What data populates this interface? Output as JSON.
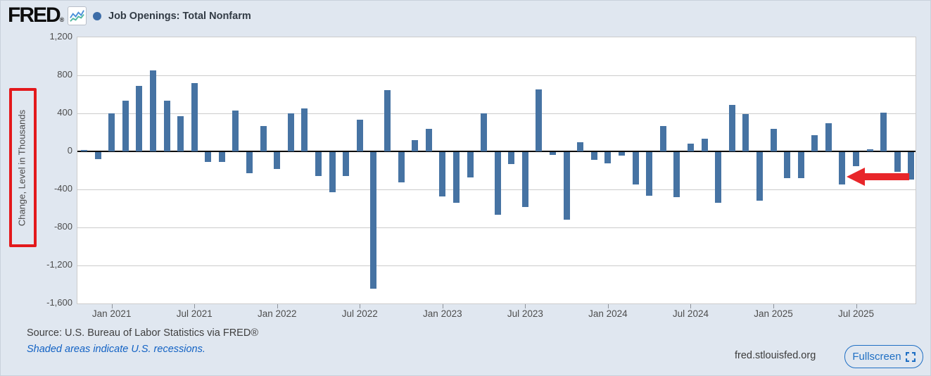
{
  "header": {
    "logo_text": "FRED",
    "registered_mark": "®",
    "series_legend": {
      "label": "Job Openings: Total Nonfarm",
      "marker_color": "#3d6da8"
    }
  },
  "chart_data": {
    "type": "bar",
    "title": "Job Openings: Total Nonfarm",
    "ylabel": "Change, Level in Thousands",
    "units": "thousands",
    "bar_color": "#4673a3",
    "grid": true,
    "ylim": [
      -1600,
      1200
    ],
    "y_tick_values": [
      1200,
      800,
      400,
      0,
      -400,
      -800,
      -1200,
      -1600
    ],
    "y_tick_labels": [
      "1,200",
      "800",
      "400",
      "0",
      "-400",
      "-800",
      "-1,200",
      "-1,600"
    ],
    "x_tick_labels": [
      "Jan 2021",
      "Jul 2021",
      "Jan 2022",
      "Jul 2022",
      "Jan 2023",
      "Jul 2023",
      "Jan 2024",
      "Jul 2024",
      "Jan 2025",
      "Jul 2025"
    ],
    "x_tick_first_index": 2,
    "x_tick_step": 6,
    "categories": [
      "Nov 2020",
      "Dec 2020",
      "Jan 2021",
      "Feb 2021",
      "Mar 2021",
      "Apr 2021",
      "May 2021",
      "Jun 2021",
      "Jul 2021",
      "Aug 2021",
      "Sep 2021",
      "Oct 2021",
      "Nov 2021",
      "Dec 2021",
      "Jan 2022",
      "Feb 2022",
      "Mar 2022",
      "Apr 2022",
      "May 2022",
      "Jun 2022",
      "Jul 2022",
      "Aug 2022",
      "Sep 2022",
      "Oct 2022",
      "Nov 2022",
      "Dec 2022",
      "Jan 2023",
      "Feb 2023",
      "Mar 2023",
      "Apr 2023",
      "May 2023",
      "Jun 2023",
      "Jul 2023",
      "Aug 2023",
      "Sep 2023",
      "Oct 2023",
      "Nov 2023",
      "Dec 2023",
      "Jan 2024",
      "Feb 2024",
      "Mar 2024",
      "Apr 2024",
      "May 2024",
      "Jun 2024",
      "Jul 2024",
      "Aug 2024",
      "Sep 2024",
      "Oct 2024",
      "Nov 2024",
      "Dec 2024",
      "Jan 2025",
      "Feb 2025",
      "Mar 2025",
      "Apr 2025",
      "May 2025",
      "Jun 2025",
      "Jul 2025",
      "Aug 2025",
      "Sep 2025",
      "Oct 2025",
      "Nov 2025"
    ],
    "values": [
      15,
      -75,
      400,
      530,
      690,
      855,
      530,
      370,
      720,
      -100,
      -105,
      430,
      -225,
      270,
      -180,
      400,
      455,
      -250,
      -420,
      -255,
      330,
      -1435,
      645,
      -315,
      120,
      240,
      -465,
      -530,
      -265,
      400,
      -660,
      -125,
      -575,
      650,
      -30,
      -710,
      95,
      -80,
      -115,
      -40,
      -340,
      -460,
      265,
      -475,
      85,
      135,
      -530,
      490,
      395,
      -510,
      235,
      -275,
      -275,
      170,
      300,
      -340,
      -150,
      20,
      410,
      -210,
      -290
    ],
    "legend_position": "top-left"
  },
  "annotations": {
    "ylabel_box": {
      "shape": "rectangle",
      "color": "#e3191c",
      "around": "Change, Level in Thousands"
    },
    "arrow": {
      "shape": "left-arrow",
      "color": "#e8262a",
      "points_to_month": "Jun 2025"
    }
  },
  "footer": {
    "source_line": "Source: U.S. Bureau of Labor Statistics via FRED®",
    "recession_note": "Shaded areas indicate U.S. recessions.",
    "site_link": "fred.stlouisfed.org",
    "fullscreen_label": "Fullscreen"
  }
}
